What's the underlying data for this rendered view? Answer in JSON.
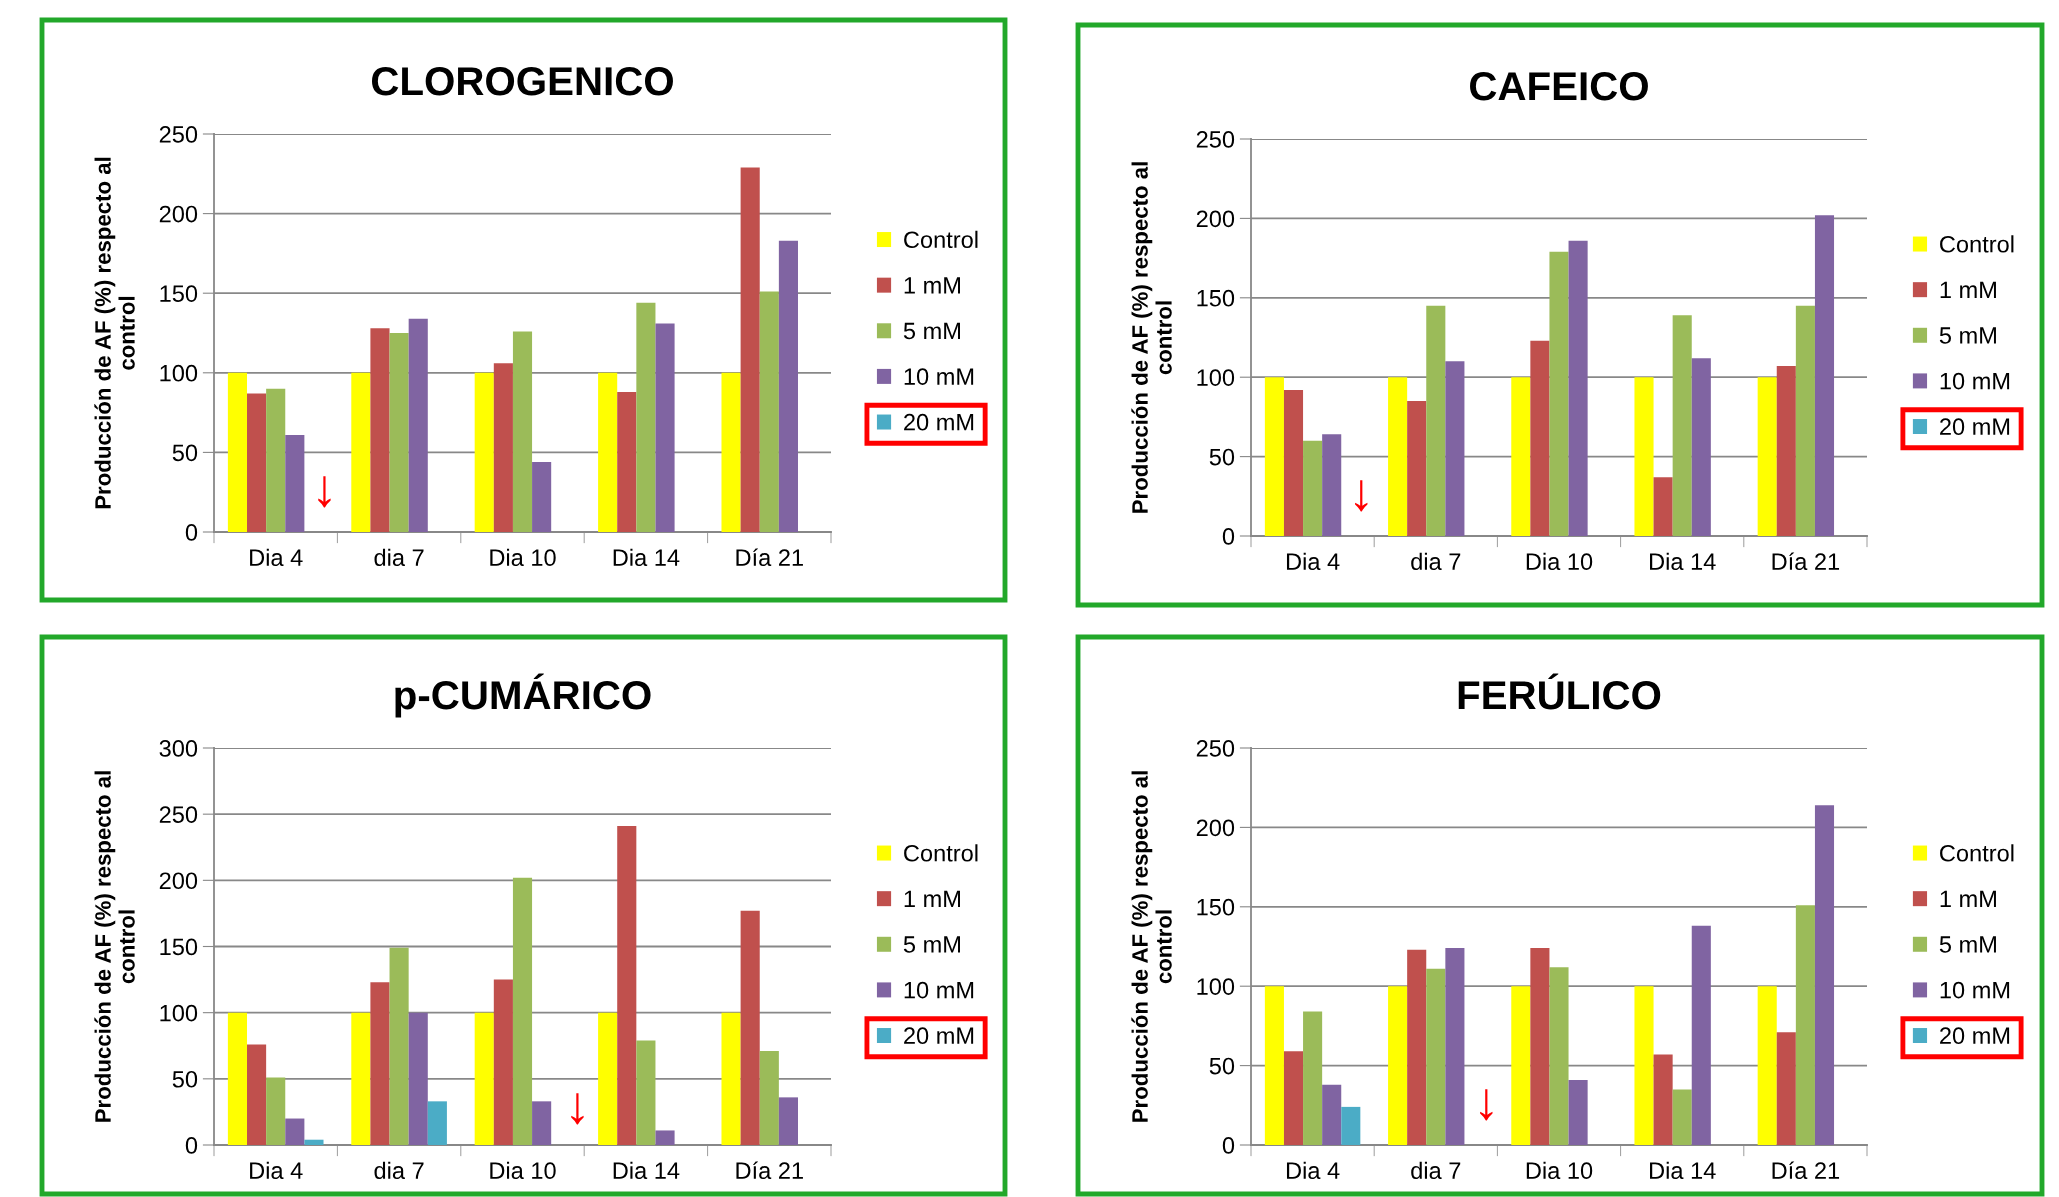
{
  "chart_data": [
    {
      "type": "bar",
      "title": "CLOROGENICO",
      "ylabel": "Producción de AF (%) respecto al\ncontrol",
      "categories": [
        "Dia 4",
        "dia 7",
        "Dia 10",
        "Dia 14",
        "Día 21"
      ],
      "ylim": [
        0,
        250
      ],
      "yticks": [
        0,
        50,
        100,
        150,
        200,
        250
      ],
      "grid": "y",
      "legend": "right",
      "series": [
        {
          "name": "Control",
          "color": "#ffff00",
          "values": [
            100,
            100,
            100,
            100,
            100
          ]
        },
        {
          "name": "1 mM",
          "color": "#c0504d",
          "values": [
            87,
            128,
            106,
            88,
            229
          ]
        },
        {
          "name": "5 mM",
          "color": "#9bbb59",
          "values": [
            90,
            125,
            126,
            144,
            151
          ]
        },
        {
          "name": "10 mM",
          "color": "#8064a2",
          "values": [
            61,
            134,
            44,
            131,
            183
          ]
        },
        {
          "name": "20 mM",
          "color": "#4bacc6",
          "values": [
            null,
            null,
            null,
            null,
            null
          ]
        }
      ],
      "annotations": [
        "↓"
      ]
    },
    {
      "type": "bar",
      "title": "CAFEICO",
      "ylabel": "Producción de AF (%) respecto al\ncontrol",
      "categories": [
        "Dia 4",
        "dia 7",
        "Dia 10",
        "Dia 14",
        "Día 21"
      ],
      "ylim": [
        0,
        250
      ],
      "yticks": [
        0,
        50,
        100,
        150,
        200,
        250
      ],
      "grid": "y",
      "legend": "right",
      "series": [
        {
          "name": "Control",
          "color": "#ffff00",
          "values": [
            100,
            100,
            100,
            100,
            100
          ]
        },
        {
          "name": "1 mM",
          "color": "#c0504d",
          "values": [
            92,
            85,
            123,
            37,
            107
          ]
        },
        {
          "name": "5 mM",
          "color": "#9bbb59",
          "values": [
            60,
            145,
            179,
            139,
            145
          ]
        },
        {
          "name": "10 mM",
          "color": "#8064a2",
          "values": [
            64,
            110,
            186,
            112,
            202
          ]
        },
        {
          "name": "20 mM",
          "color": "#4bacc6",
          "values": [
            null,
            null,
            null,
            null,
            null
          ]
        }
      ],
      "annotations": [
        "↓"
      ]
    },
    {
      "type": "bar",
      "title": "p-CUMÁRICO",
      "ylabel": "Producción de AF (%) respecto al\ncontrol",
      "categories": [
        "Dia 4",
        "dia 7",
        "Dia 10",
        "Dia 14",
        "Día 21"
      ],
      "ylim": [
        0,
        300
      ],
      "yticks": [
        0,
        50,
        100,
        150,
        200,
        250,
        300
      ],
      "grid": "y",
      "legend": "right",
      "series": [
        {
          "name": "Control",
          "color": "#ffff00",
          "values": [
            100,
            100,
            100,
            100,
            100
          ]
        },
        {
          "name": "1 mM",
          "color": "#c0504d",
          "values": [
            76,
            123,
            125,
            241,
            177
          ]
        },
        {
          "name": "5 mM",
          "color": "#9bbb59",
          "values": [
            51,
            149,
            202,
            79,
            71
          ]
        },
        {
          "name": "10 mM",
          "color": "#8064a2",
          "values": [
            20,
            100,
            33,
            11,
            36
          ]
        },
        {
          "name": "20 mM",
          "color": "#4bacc6",
          "values": [
            4,
            33,
            null,
            null,
            null
          ]
        }
      ],
      "annotations": [
        "↓"
      ]
    },
    {
      "type": "bar",
      "title": "FERÚLICO",
      "ylabel": "Producción de AF (%) respecto al\ncontrol",
      "categories": [
        "Dia 4",
        "dia 7",
        "Dia 10",
        "Dia 14",
        "Día 21"
      ],
      "ylim": [
        0,
        250
      ],
      "yticks": [
        0,
        50,
        100,
        150,
        200,
        250
      ],
      "grid": "y",
      "legend": "right",
      "series": [
        {
          "name": "Control",
          "color": "#ffff00",
          "values": [
            100,
            100,
            100,
            100,
            100
          ]
        },
        {
          "name": "1 mM",
          "color": "#c0504d",
          "values": [
            59,
            123,
            124,
            57,
            71
          ]
        },
        {
          "name": "5 mM",
          "color": "#9bbb59",
          "values": [
            84,
            111,
            112,
            35,
            151
          ]
        },
        {
          "name": "10 mM",
          "color": "#8064a2",
          "values": [
            38,
            124,
            41,
            138,
            214
          ]
        },
        {
          "name": "20 mM",
          "color": "#4bacc6",
          "values": [
            24,
            null,
            null,
            null,
            null
          ]
        }
      ],
      "annotations": [
        "↓"
      ]
    }
  ]
}
